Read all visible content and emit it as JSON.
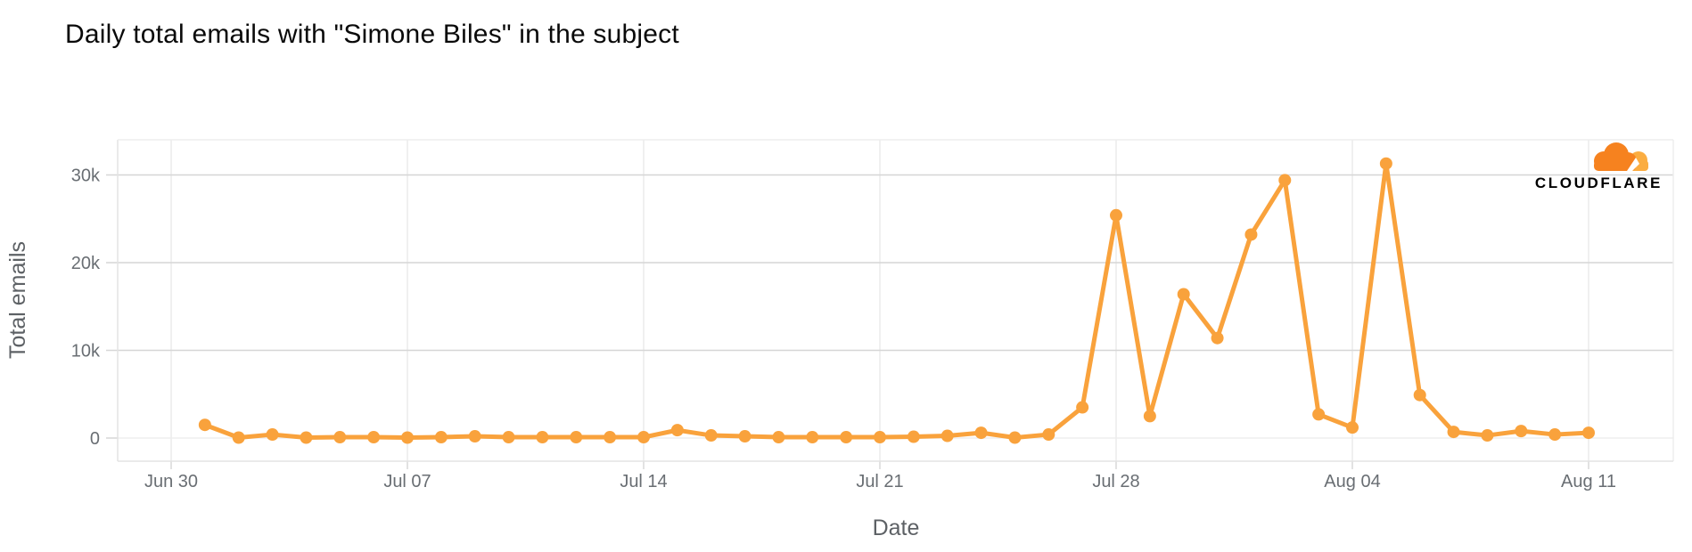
{
  "title": "Daily total emails with \"Simone Biles\" in the subject",
  "logo": {
    "text": "CLOUDFLARE",
    "cloud_main_color": "#F6821F",
    "cloud_light_color": "#FBAD41"
  },
  "chart_data": {
    "type": "line",
    "title": "Daily total emails with \"Simone Biles\" in the subject",
    "xlabel": "Date",
    "ylabel": "Total emails",
    "x": [
      "Jul 01",
      "Jul 02",
      "Jul 03",
      "Jul 04",
      "Jul 05",
      "Jul 06",
      "Jul 07",
      "Jul 08",
      "Jul 09",
      "Jul 10",
      "Jul 11",
      "Jul 12",
      "Jul 13",
      "Jul 14",
      "Jul 15",
      "Jul 16",
      "Jul 17",
      "Jul 18",
      "Jul 19",
      "Jul 20",
      "Jul 21",
      "Jul 22",
      "Jul 23",
      "Jul 24",
      "Jul 25",
      "Jul 26",
      "Jul 27",
      "Jul 28",
      "Jul 29",
      "Jul 30",
      "Jul 31",
      "Aug 01",
      "Aug 02",
      "Aug 03",
      "Aug 04",
      "Aug 05",
      "Aug 06",
      "Aug 07",
      "Aug 08",
      "Aug 09",
      "Aug 10",
      "Aug 11"
    ],
    "values": [
      1500,
      50,
      400,
      50,
      100,
      100,
      50,
      100,
      200,
      100,
      100,
      100,
      100,
      100,
      900,
      300,
      200,
      100,
      100,
      100,
      100,
      150,
      250,
      600,
      50,
      400,
      3500,
      25400,
      2500,
      16400,
      11400,
      23200,
      29400,
      2700,
      1200,
      31300,
      4900,
      700,
      300,
      800,
      400,
      600
    ],
    "xticks": [
      "Jun 30",
      "Jul 07",
      "Jul 14",
      "Jul 21",
      "Jul 28",
      "Aug 04",
      "Aug 11"
    ],
    "yticks": [
      {
        "label": "0",
        "value": 0
      },
      {
        "label": "10k",
        "value": 10000
      },
      {
        "label": "20k",
        "value": 20000
      },
      {
        "label": "30k",
        "value": 30000
      }
    ],
    "ylim": [
      -2500,
      34000
    ],
    "grid": true,
    "legend": false,
    "line_color": "#F9A23C",
    "marker": "circle"
  }
}
